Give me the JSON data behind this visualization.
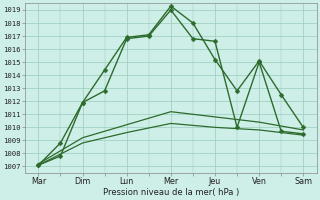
{
  "background_color": "#ceeee8",
  "grid_color": "#99ccbb",
  "line_color": "#2d6b2d",
  "x_labels": [
    "Mar",
    "Dim",
    "Lun",
    "Mer",
    "Jeu",
    "Ven",
    "Sam"
  ],
  "x_ticks": [
    0,
    1,
    2,
    3,
    4,
    5,
    6
  ],
  "ylim": [
    1006.5,
    1019.5
  ],
  "ytick_vals": [
    1007,
    1008,
    1009,
    1010,
    1011,
    1012,
    1013,
    1014,
    1015,
    1016,
    1017,
    1018,
    1019
  ],
  "xlabel": "Pression niveau de la mer( hPa )",
  "series": [
    {
      "x": [
        0,
        0.5,
        1.0,
        1.5,
        2.0,
        2.5,
        3.0,
        3.5,
        4.0,
        4.5,
        5.0,
        5.5,
        6.0
      ],
      "y": [
        1007.1,
        1007.8,
        1011.9,
        1014.4,
        1016.9,
        1017.1,
        1019.3,
        1018.0,
        1015.2,
        1012.8,
        1015.1,
        1012.5,
        1010.0
      ],
      "marker": "D",
      "markersize": 2.5,
      "linewidth": 1.0
    },
    {
      "x": [
        0,
        0.5,
        1.0,
        1.5,
        2.0,
        2.5,
        3.0,
        3.5,
        4.0,
        4.5,
        5.0,
        5.5,
        6.0
      ],
      "y": [
        1007.1,
        1008.8,
        1011.9,
        1012.8,
        1016.8,
        1017.0,
        1019.0,
        1016.8,
        1016.6,
        1010.0,
        1015.0,
        1009.7,
        1009.5
      ],
      "marker": "D",
      "markersize": 2.5,
      "linewidth": 1.0
    },
    {
      "x": [
        0,
        1.0,
        2.0,
        3.0,
        4.0,
        5.0,
        6.0
      ],
      "y": [
        1007.2,
        1009.2,
        1010.2,
        1011.2,
        1010.8,
        1010.4,
        1009.8
      ],
      "marker": null,
      "markersize": 0,
      "linewidth": 0.9
    },
    {
      "x": [
        0,
        1.0,
        2.0,
        3.0,
        4.0,
        5.0,
        6.0
      ],
      "y": [
        1007.1,
        1008.8,
        1009.6,
        1010.3,
        1010.0,
        1009.8,
        1009.4
      ],
      "marker": null,
      "markersize": 0,
      "linewidth": 0.9
    }
  ]
}
